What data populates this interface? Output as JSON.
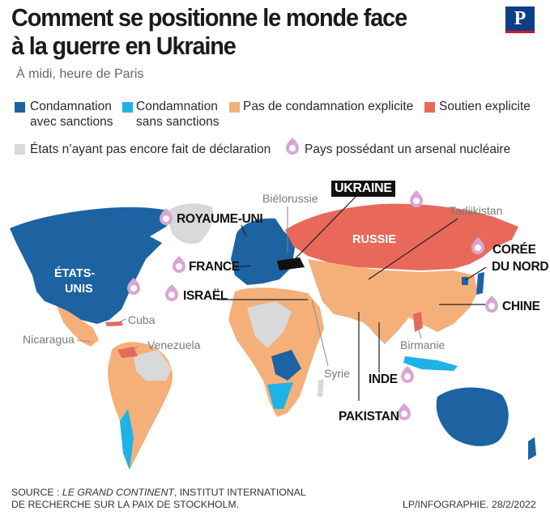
{
  "title_line1": "Comment se positionne le monde face",
  "title_line2": "à la guerre en Ukraine",
  "subtitle": "À midi, heure de Paris",
  "logo": "P",
  "colors": {
    "condemn_sanctions": "#1d63a2",
    "condemn_no_sanctions": "#1eb2e7",
    "no_explicit": "#f5b07a",
    "explicit_support": "#e8695a",
    "no_declaration": "#d9d9da",
    "nuclear": "#d9a6d4"
  },
  "legend": {
    "condemn_sanctions_1": "Condamnation",
    "condemn_sanctions_2": "avec sanctions",
    "condemn_no_sanctions_1": "Condamnation",
    "condemn_no_sanctions_2": "sans sanctions",
    "no_explicit": "Pas de condamnation explicite",
    "explicit_support": "Soutien explicite",
    "no_declaration": "États n’ayant pas encore fait de déclaration",
    "nuclear": "Pays possédant un arsenal nucléaire"
  },
  "labels": {
    "ukraine": "UKRAINE",
    "bielorussie": "Biélorussie",
    "tadjikistan": "Tadjikistan",
    "royaume_uni": "ROYAUME-UNI",
    "russie": "RUSSIE",
    "coree_1": "CORÉE",
    "coree_2": "DU NORD",
    "france": "FRANCE",
    "etats_1": "ÉTATS-",
    "etats_2": "UNIS",
    "israel": "ISRAËL",
    "chine": "CHINE",
    "cuba": "Cuba",
    "nicaragua": "Nicaragua",
    "venezuela": "Venezuela",
    "syrie": "Syrie",
    "birmanie": "Birmanie",
    "inde": "INDE",
    "pakistan": "PAKISTAN"
  },
  "footer": {
    "source_prefix": "SOURCE : ",
    "source_italic": "LE GRAND CONTINENT",
    "source_rest": ", INSTITUT INTERNATIONAL",
    "source_line2": "DE RECHERCHE SUR LA PAIX DE STOCKHOLM.",
    "credit": "LP/INFOGRAPHIE. 28/2/2022"
  }
}
